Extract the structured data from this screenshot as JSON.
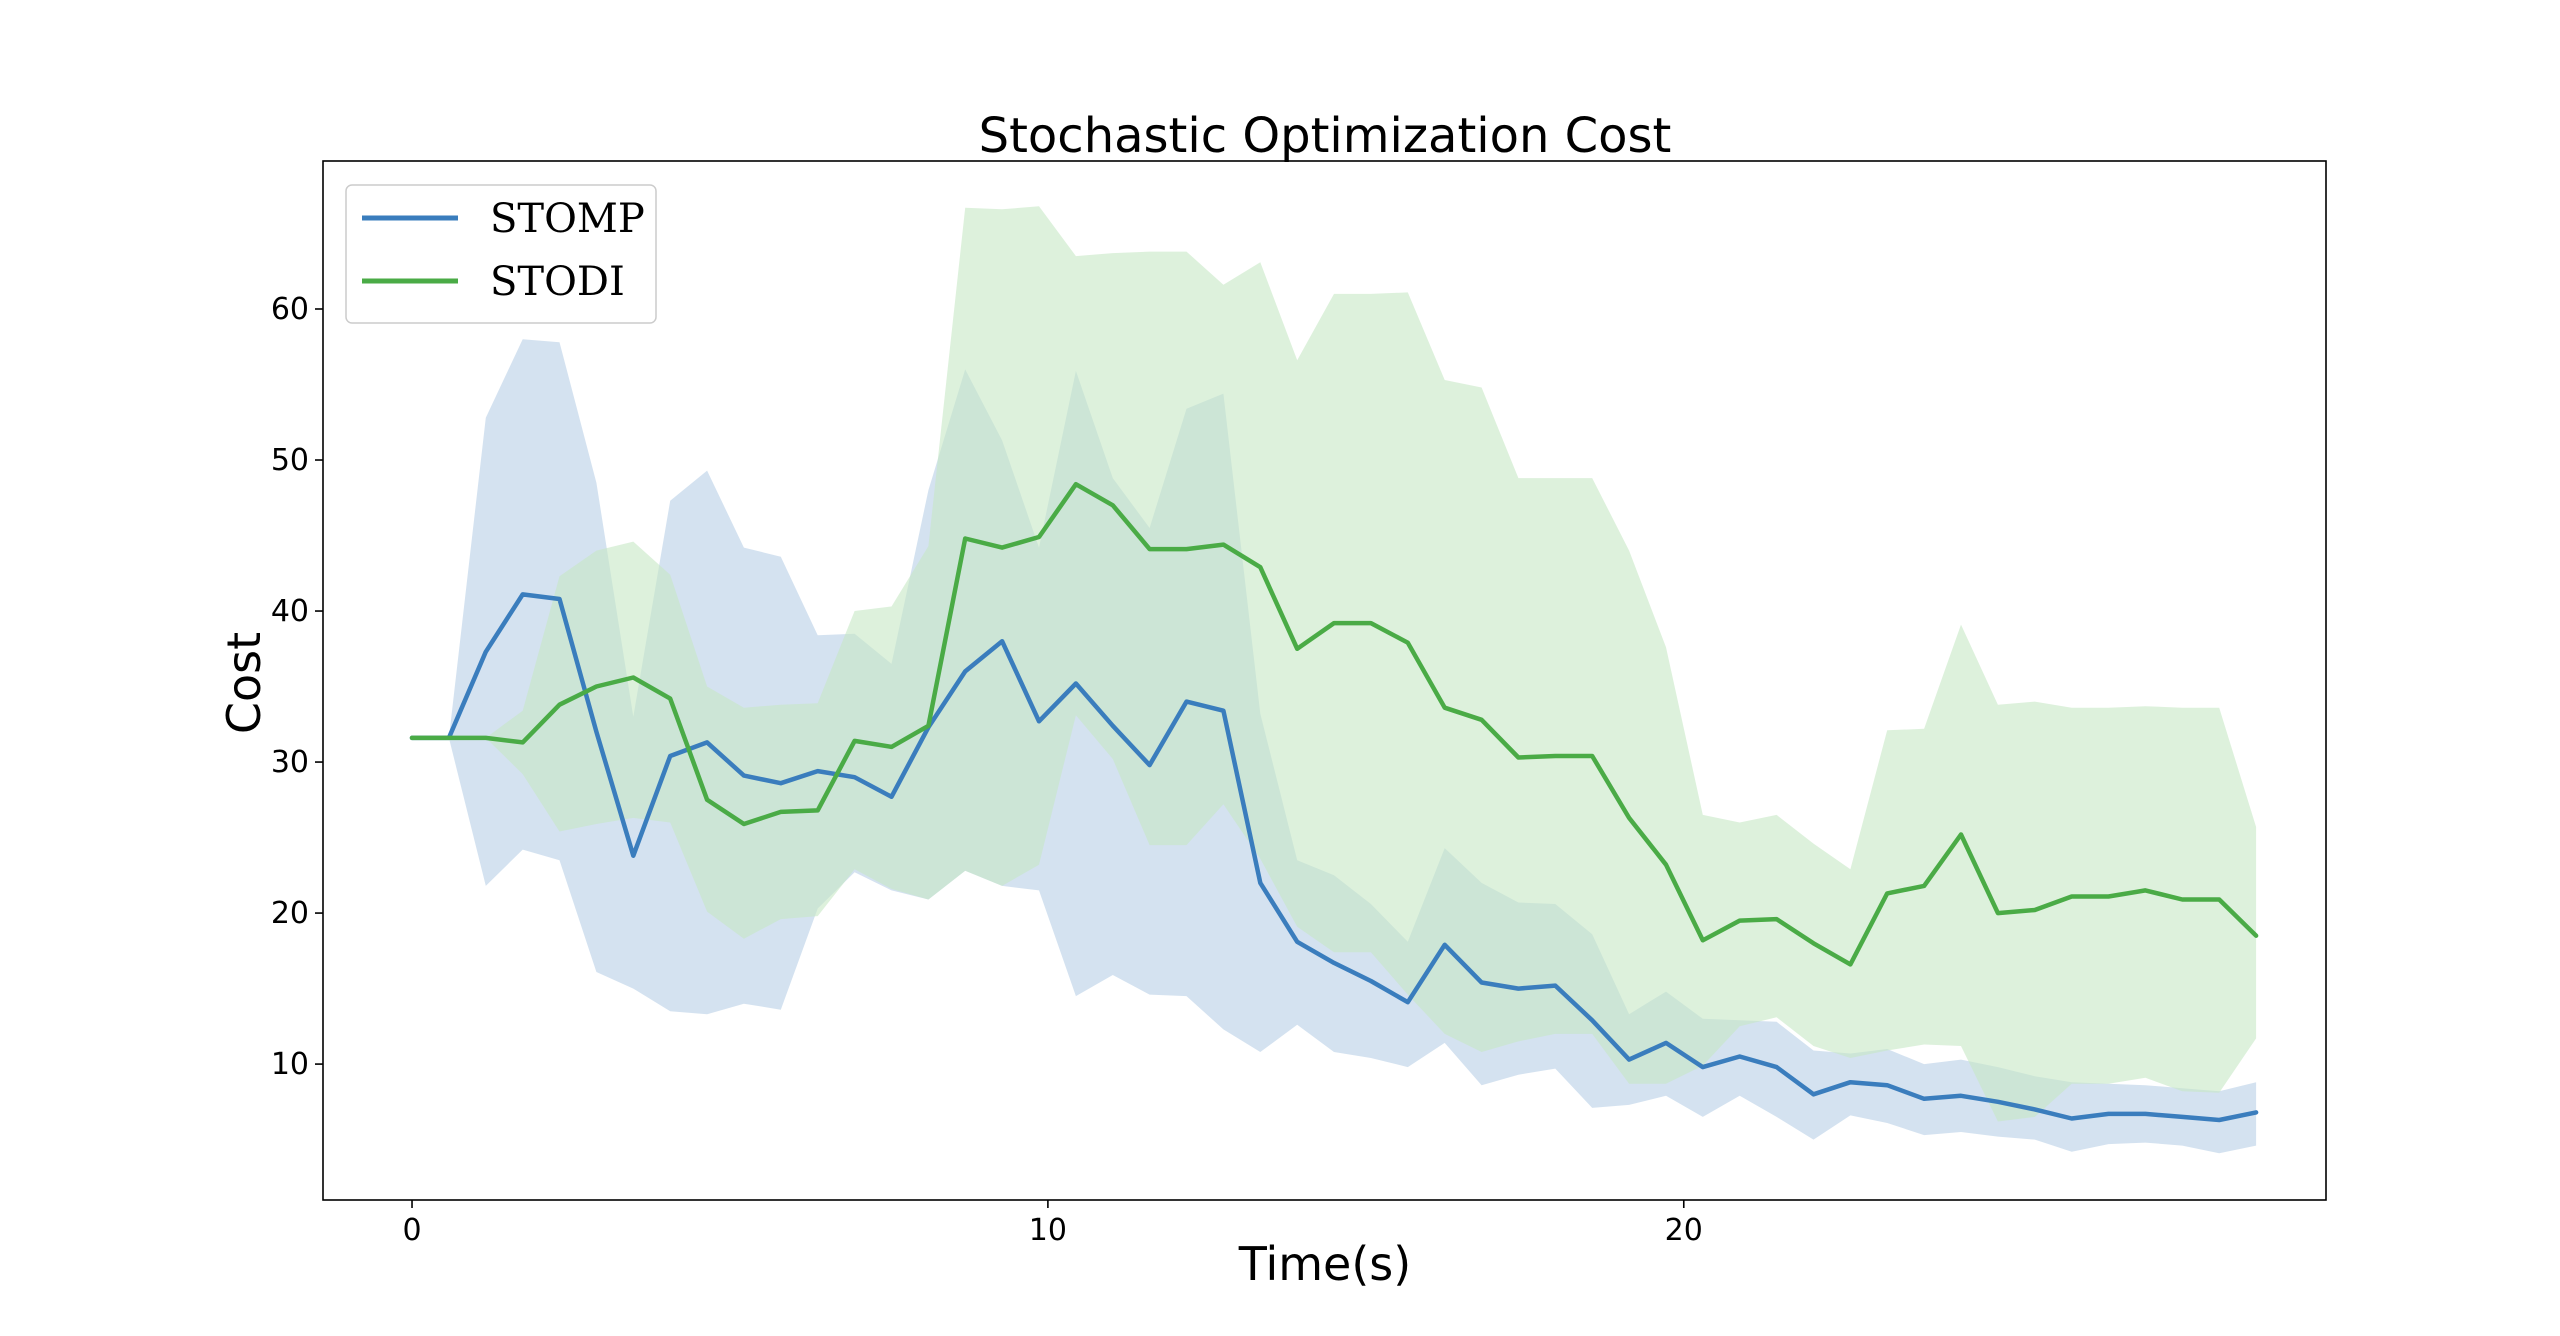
{
  "chart_data": {
    "type": "line",
    "title": "Stochastic Optimization Cost",
    "xlabel": "Time(s)",
    "ylabel": "Cost",
    "xlim": [
      -1.4,
      30.1
    ],
    "ylim": [
      1,
      69.8
    ],
    "xticks": [
      0,
      10,
      20
    ],
    "yticks": [
      10,
      20,
      30,
      40,
      50,
      60
    ],
    "grid": false,
    "legend_position": "upper-left",
    "x": [
      0,
      0.58,
      1.16,
      1.74,
      2.32,
      2.9,
      3.48,
      4.06,
      4.64,
      5.22,
      5.8,
      6.38,
      6.96,
      7.54,
      8.12,
      8.7,
      9.28,
      9.86,
      10.44,
      11.02,
      11.6,
      12.18,
      12.76,
      13.34,
      13.92,
      14.5,
      15.08,
      15.66,
      16.24,
      16.82,
      17.4,
      17.98,
      18.56,
      19.14,
      19.72,
      20.3,
      20.88,
      21.46,
      22.04,
      22.62,
      23.2,
      23.78,
      24.36,
      24.94,
      25.52,
      26.1,
      26.68,
      27.26,
      27.84,
      28.42,
      29.0
    ],
    "series": [
      {
        "name": "STOMP",
        "color": "#3a7dbd",
        "band_color": "#b8cfe6",
        "values": [
          31.6,
          31.6,
          37.3,
          41.1,
          40.8,
          32.0,
          23.8,
          30.4,
          31.3,
          29.1,
          28.6,
          29.4,
          29.0,
          27.7,
          32.3,
          36.0,
          38.0,
          32.7,
          35.2,
          32.4,
          29.8,
          34.0,
          33.4,
          22.0,
          18.1,
          16.7,
          15.5,
          14.1,
          17.9,
          15.4,
          15.0,
          15.2,
          12.9,
          10.3,
          11.4,
          9.8,
          10.5,
          9.8,
          8.0,
          8.8,
          8.6,
          7.7,
          7.9,
          7.5,
          7.0,
          6.4,
          6.7,
          6.7,
          6.5,
          6.3,
          6.8
        ],
        "upper": [
          31.6,
          31.6,
          52.8,
          58.0,
          57.8,
          48.5,
          33.0,
          47.3,
          49.3,
          44.2,
          43.6,
          38.4,
          38.5,
          36.5,
          48.0,
          56.0,
          51.3,
          44.2,
          55.9,
          48.8,
          45.5,
          53.4,
          54.4,
          33.2,
          23.5,
          22.5,
          20.6,
          18.1,
          24.3,
          22.0,
          20.7,
          20.6,
          18.6,
          13.3,
          14.8,
          13.0,
          12.9,
          12.8,
          10.9,
          10.7,
          11.0,
          10.0,
          10.3,
          9.8,
          9.2,
          8.8,
          8.7,
          8.6,
          8.4,
          8.2,
          8.8
        ],
        "lower": [
          31.6,
          31.6,
          21.8,
          24.2,
          23.5,
          16.1,
          15.0,
          13.5,
          13.3,
          14.0,
          13.6,
          20.3,
          22.7,
          21.5,
          20.9,
          22.8,
          21.8,
          21.5,
          14.5,
          15.9,
          14.6,
          14.5,
          12.3,
          10.8,
          12.6,
          10.8,
          10.4,
          9.8,
          11.4,
          8.6,
          9.3,
          9.7,
          7.1,
          7.3,
          7.9,
          6.5,
          7.9,
          6.5,
          5.0,
          6.6,
          6.1,
          5.3,
          5.5,
          5.2,
          5.0,
          4.2,
          4.7,
          4.8,
          4.6,
          4.1,
          4.6
        ]
      },
      {
        "name": "STODI",
        "color": "#4aab46",
        "band_color": "#c7e8c4",
        "values": [
          31.6,
          31.6,
          31.6,
          31.3,
          33.8,
          35.0,
          35.6,
          34.2,
          27.5,
          25.9,
          26.7,
          26.8,
          31.4,
          31.0,
          32.4,
          44.8,
          44.2,
          44.9,
          48.4,
          47.0,
          44.1,
          44.1,
          44.4,
          42.9,
          37.5,
          39.2,
          39.2,
          37.9,
          33.6,
          32.8,
          30.3,
          30.4,
          30.4,
          26.3,
          23.2,
          18.2,
          19.5,
          19.6,
          18.0,
          16.6,
          21.3,
          21.8,
          25.2,
          20.0,
          20.2,
          21.1,
          21.1,
          21.5,
          20.9,
          20.9,
          18.5
        ],
        "upper": [
          31.6,
          31.6,
          31.6,
          33.4,
          42.3,
          44.0,
          44.6,
          42.4,
          35.0,
          33.6,
          33.8,
          33.9,
          40.0,
          40.3,
          44.3,
          66.7,
          66.6,
          66.8,
          63.5,
          63.7,
          63.8,
          63.8,
          61.6,
          63.1,
          56.6,
          61.0,
          61.0,
          61.1,
          55.3,
          54.8,
          48.8,
          48.8,
          48.8,
          44.0,
          37.6,
          26.5,
          26.0,
          26.5,
          24.6,
          22.9,
          32.1,
          32.2,
          39.1,
          33.8,
          34.0,
          33.6,
          33.6,
          33.7,
          33.6,
          33.6,
          25.7
        ],
        "lower": [
          31.6,
          31.6,
          31.6,
          29.2,
          25.4,
          25.9,
          26.3,
          26.0,
          20.1,
          18.3,
          19.6,
          19.8,
          22.9,
          21.6,
          20.9,
          22.8,
          21.8,
          23.2,
          33.1,
          30.2,
          24.5,
          24.5,
          27.2,
          23.6,
          19.1,
          17.4,
          17.4,
          14.6,
          12.0,
          10.8,
          11.5,
          12.0,
          12.0,
          8.7,
          8.7,
          9.9,
          12.5,
          13.1,
          11.2,
          10.4,
          10.9,
          11.3,
          11.2,
          6.2,
          6.5,
          8.7,
          8.7,
          9.1,
          8.2,
          8.1,
          11.7
        ]
      }
    ]
  }
}
